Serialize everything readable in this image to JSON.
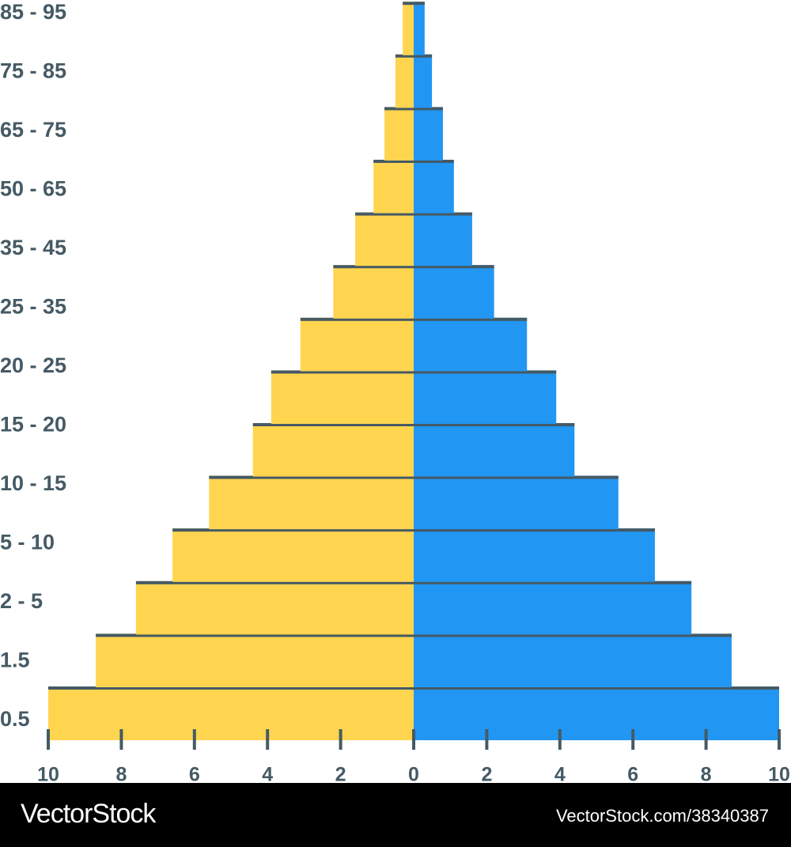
{
  "chart_data": {
    "type": "pyramid",
    "categories": [
      "0.5",
      "1.5",
      "2 - 5",
      "5 - 10",
      "10 - 15",
      "15 - 20",
      "20 - 25",
      "25 - 35",
      "35 - 45",
      "50 - 65",
      "65 - 75",
      "75 - 85",
      "85 - 95",
      null
    ],
    "series": [
      {
        "color": "#FFD54F",
        "values": [
          10,
          8.7,
          7.6,
          6.6,
          5.6,
          4.4,
          3.9,
          3.1,
          2.2,
          1.6,
          1.1,
          0.8,
          0.5,
          0.3
        ]
      },
      {
        "color": "#2196F3",
        "values": [
          10,
          8.7,
          7.6,
          6.6,
          5.6,
          4.4,
          3.9,
          3.1,
          2.2,
          1.6,
          1.1,
          0.8,
          0.5,
          0.3
        ]
      }
    ],
    "xlim": [
      -10,
      10
    ],
    "xticks": [
      {
        "value": -10,
        "label": "10"
      },
      {
        "value": -8,
        "label": "8"
      },
      {
        "value": -6,
        "label": "6"
      },
      {
        "value": -4,
        "label": "4"
      },
      {
        "value": -2,
        "label": "2"
      },
      0,
      2,
      4,
      6,
      8,
      10
    ],
    "cap_color": "#455A64"
  },
  "footer": {
    "brand": "VectorStock",
    "id": "VectorStock.com/38340387"
  }
}
